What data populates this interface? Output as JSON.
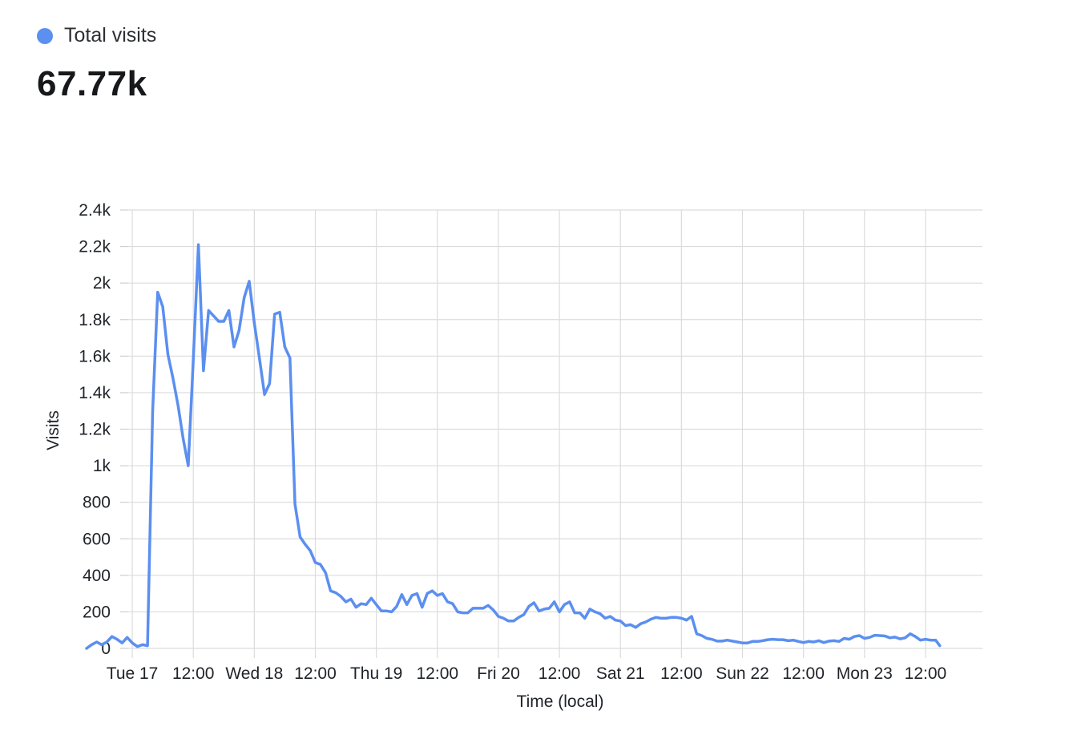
{
  "legend": {
    "label": "Total visits",
    "color": "#5b8ff0"
  },
  "summary": {
    "value": "67.77k"
  },
  "chart_data": {
    "type": "line",
    "xlabel": "Time (local)",
    "ylabel": "Visits",
    "ylim": [
      0,
      2400
    ],
    "x_range_hours": [
      -0.8,
      167.2
    ],
    "grid": true,
    "y_ticks": [
      {
        "value": 0,
        "label": "0"
      },
      {
        "value": 200,
        "label": "200"
      },
      {
        "value": 400,
        "label": "400"
      },
      {
        "value": 600,
        "label": "600"
      },
      {
        "value": 800,
        "label": "800"
      },
      {
        "value": 1000,
        "label": "1k"
      },
      {
        "value": 1200,
        "label": "1.2k"
      },
      {
        "value": 1400,
        "label": "1.4k"
      },
      {
        "value": 1600,
        "label": "1.6k"
      },
      {
        "value": 1800,
        "label": "1.8k"
      },
      {
        "value": 2000,
        "label": "2k"
      },
      {
        "value": 2200,
        "label": "2.2k"
      },
      {
        "value": 2400,
        "label": "2.4k"
      }
    ],
    "x_ticks": [
      {
        "hour": 0,
        "label": "Tue 17"
      },
      {
        "hour": 12,
        "label": "12:00"
      },
      {
        "hour": 24,
        "label": "Wed 18"
      },
      {
        "hour": 36,
        "label": "12:00"
      },
      {
        "hour": 48,
        "label": "Thu 19"
      },
      {
        "hour": 60,
        "label": "12:00"
      },
      {
        "hour": 72,
        "label": "Fri 20"
      },
      {
        "hour": 84,
        "label": "12:00"
      },
      {
        "hour": 96,
        "label": "Sat 21"
      },
      {
        "hour": 108,
        "label": "12:00"
      },
      {
        "hour": 120,
        "label": "Sun 22"
      },
      {
        "hour": 132,
        "label": "12:00"
      },
      {
        "hour": 144,
        "label": "Mon 23"
      },
      {
        "hour": 156,
        "label": "12:00"
      }
    ],
    "series": [
      {
        "color": "#5b8ff0",
        "points": [
          [
            -9.0,
            0
          ],
          [
            -8,
            20
          ],
          [
            -7,
            35
          ],
          [
            -6,
            20
          ],
          [
            -5,
            35
          ],
          [
            -4,
            65
          ],
          [
            -3,
            50
          ],
          [
            -2,
            30
          ],
          [
            -1,
            60
          ],
          [
            0,
            30
          ],
          [
            1,
            10
          ],
          [
            2,
            20
          ],
          [
            3,
            15
          ],
          [
            4,
            1300
          ],
          [
            5,
            1950
          ],
          [
            6,
            1870
          ],
          [
            7,
            1610
          ],
          [
            8,
            1480
          ],
          [
            9,
            1330
          ],
          [
            10,
            1150
          ],
          [
            11,
            1000
          ],
          [
            12,
            1580
          ],
          [
            13,
            2210
          ],
          [
            14,
            1520
          ],
          [
            15,
            1850
          ],
          [
            16,
            1820
          ],
          [
            17,
            1790
          ],
          [
            18,
            1790
          ],
          [
            19,
            1850
          ],
          [
            20,
            1650
          ],
          [
            21,
            1740
          ],
          [
            22,
            1920
          ],
          [
            23,
            2010
          ],
          [
            24,
            1780
          ],
          [
            25,
            1590
          ],
          [
            26,
            1390
          ],
          [
            27,
            1450
          ],
          [
            28,
            1830
          ],
          [
            29,
            1840
          ],
          [
            30,
            1650
          ],
          [
            31,
            1590
          ],
          [
            32,
            790
          ],
          [
            33,
            610
          ],
          [
            34,
            570
          ],
          [
            35,
            535
          ],
          [
            36,
            470
          ],
          [
            37,
            460
          ],
          [
            38,
            415
          ],
          [
            39,
            315
          ],
          [
            40,
            305
          ],
          [
            41,
            285
          ],
          [
            42,
            255
          ],
          [
            43,
            270
          ],
          [
            44,
            225
          ],
          [
            45,
            245
          ],
          [
            46,
            240
          ],
          [
            47,
            275
          ],
          [
            48,
            240
          ],
          [
            49,
            205
          ],
          [
            50,
            205
          ],
          [
            51,
            200
          ],
          [
            52,
            230
          ],
          [
            53,
            295
          ],
          [
            54,
            240
          ],
          [
            55,
            290
          ],
          [
            56,
            300
          ],
          [
            57,
            225
          ],
          [
            58,
            300
          ],
          [
            59,
            315
          ],
          [
            60,
            290
          ],
          [
            61,
            300
          ],
          [
            62,
            255
          ],
          [
            63,
            245
          ],
          [
            64,
            200
          ],
          [
            65,
            195
          ],
          [
            66,
            195
          ],
          [
            67,
            220
          ],
          [
            68,
            220
          ],
          [
            69,
            220
          ],
          [
            70,
            235
          ],
          [
            71,
            210
          ],
          [
            72,
            175
          ],
          [
            73,
            165
          ],
          [
            74,
            150
          ],
          [
            75,
            150
          ],
          [
            76,
            170
          ],
          [
            77,
            185
          ],
          [
            78,
            230
          ],
          [
            79,
            250
          ],
          [
            80,
            205
          ],
          [
            81,
            215
          ],
          [
            82,
            220
          ],
          [
            83,
            255
          ],
          [
            84,
            200
          ],
          [
            85,
            240
          ],
          [
            86,
            255
          ],
          [
            87,
            195
          ],
          [
            88,
            195
          ],
          [
            89,
            165
          ],
          [
            90,
            215
          ],
          [
            91,
            200
          ],
          [
            92,
            190
          ],
          [
            93,
            165
          ],
          [
            94,
            175
          ],
          [
            95,
            155
          ],
          [
            96,
            150
          ],
          [
            97,
            125
          ],
          [
            98,
            130
          ],
          [
            99,
            115
          ],
          [
            100,
            135
          ],
          [
            101,
            145
          ],
          [
            102,
            160
          ],
          [
            103,
            170
          ],
          [
            104,
            165
          ],
          [
            105,
            165
          ],
          [
            106,
            170
          ],
          [
            107,
            170
          ],
          [
            108,
            165
          ],
          [
            109,
            155
          ],
          [
            110,
            175
          ],
          [
            111,
            80
          ],
          [
            112,
            70
          ],
          [
            113,
            55
          ],
          [
            114,
            50
          ],
          [
            115,
            40
          ],
          [
            116,
            40
          ],
          [
            117,
            45
          ],
          [
            118,
            40
          ],
          [
            119,
            35
          ],
          [
            120,
            30
          ],
          [
            121,
            30
          ],
          [
            122,
            38
          ],
          [
            123,
            38
          ],
          [
            124,
            42
          ],
          [
            125,
            48
          ],
          [
            126,
            50
          ],
          [
            127,
            48
          ],
          [
            128,
            48
          ],
          [
            129,
            42
          ],
          [
            130,
            45
          ],
          [
            131,
            38
          ],
          [
            132,
            32
          ],
          [
            133,
            38
          ],
          [
            134,
            35
          ],
          [
            135,
            42
          ],
          [
            136,
            32
          ],
          [
            137,
            40
          ],
          [
            138,
            42
          ],
          [
            139,
            38
          ],
          [
            140,
            55
          ],
          [
            141,
            50
          ],
          [
            142,
            65
          ],
          [
            143,
            70
          ],
          [
            144,
            55
          ],
          [
            145,
            60
          ],
          [
            146,
            72
          ],
          [
            147,
            70
          ],
          [
            148,
            68
          ],
          [
            149,
            58
          ],
          [
            150,
            62
          ],
          [
            151,
            52
          ],
          [
            152,
            58
          ],
          [
            153,
            80
          ],
          [
            154,
            65
          ],
          [
            155,
            45
          ],
          [
            156,
            50
          ],
          [
            157,
            45
          ],
          [
            158,
            45
          ],
          [
            158.8,
            15
          ]
        ]
      }
    ]
  }
}
